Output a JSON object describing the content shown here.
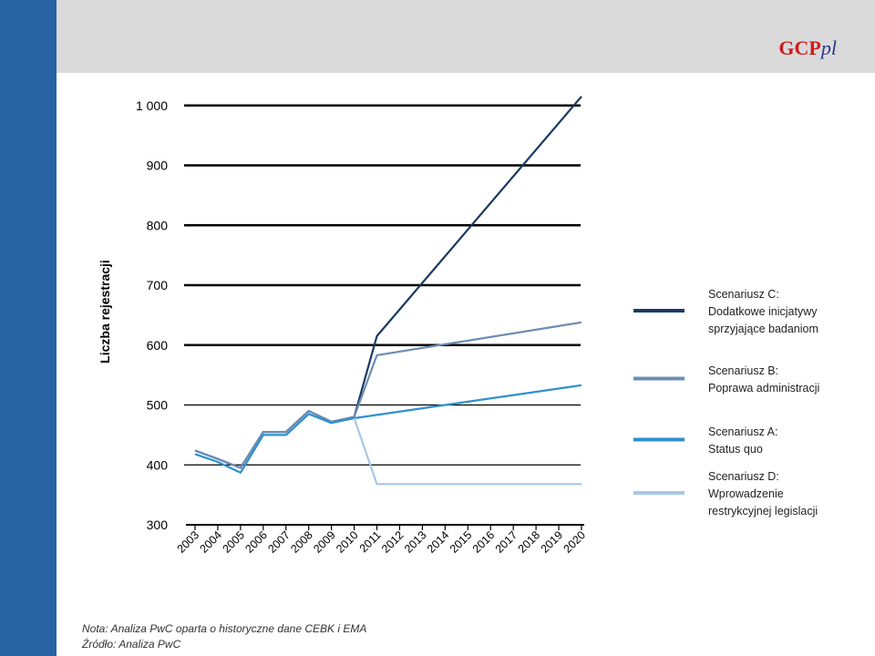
{
  "logo": {
    "bold": "GCP",
    "italic": "pl"
  },
  "chart_data": {
    "type": "line",
    "ylabel": "Liczba rejestracji",
    "xlabel": "",
    "ylim": [
      300,
      1000
    ],
    "yticks": [
      {
        "v": 300,
        "label": "300"
      },
      {
        "v": 400,
        "label": "400"
      },
      {
        "v": 500,
        "label": "500"
      },
      {
        "v": 600,
        "label": "600"
      },
      {
        "v": 700,
        "label": "700"
      },
      {
        "v": 800,
        "label": "800"
      },
      {
        "v": 900,
        "label": "900"
      },
      {
        "v": 1000,
        "label": "1 000"
      }
    ],
    "categories": [
      "2003",
      "2004",
      "2005",
      "2006",
      "2007",
      "2008",
      "2009",
      "2010",
      "2011",
      "2012",
      "2013",
      "2014",
      "2015",
      "2016",
      "2017",
      "2018",
      "2019",
      "2020"
    ],
    "legend_position": "right",
    "series": [
      {
        "name_lines": [
          "Scenariusz C:",
          "Dodatkowe inicjatywy",
          "sprzyjające badaniom"
        ],
        "color": "#1b3a63",
        "points": [
          [
            0,
            424
          ],
          [
            1,
            410
          ],
          [
            2,
            395
          ],
          [
            3,
            455
          ],
          [
            4,
            455
          ],
          [
            5,
            490
          ],
          [
            6,
            472
          ],
          [
            7,
            480
          ],
          [
            8,
            615
          ],
          [
            17,
            1015
          ]
        ]
      },
      {
        "name_lines": [
          "Scenariusz B:",
          "Poprawa administracji"
        ],
        "color": "#6b8db3",
        "points": [
          [
            0,
            424
          ],
          [
            1,
            410
          ],
          [
            2,
            395
          ],
          [
            3,
            455
          ],
          [
            4,
            455
          ],
          [
            5,
            490
          ],
          [
            6,
            472
          ],
          [
            7,
            480
          ],
          [
            8,
            583
          ],
          [
            17,
            638
          ]
        ]
      },
      {
        "name_lines": [
          "Scenariusz A:",
          "Status quo"
        ],
        "color": "#2e90d1",
        "points": [
          [
            0,
            418
          ],
          [
            1,
            405
          ],
          [
            2,
            387
          ],
          [
            3,
            450
          ],
          [
            4,
            450
          ],
          [
            5,
            485
          ],
          [
            6,
            470
          ],
          [
            7,
            478
          ],
          [
            17,
            533
          ]
        ]
      },
      {
        "name_lines": [
          "Scenariusz D:",
          "Wprowadzenie",
          "restrykcyjnej legislacji"
        ],
        "color": "#a6c8e6",
        "points": [
          [
            7,
            478
          ],
          [
            8,
            368
          ],
          [
            17,
            368
          ]
        ]
      }
    ]
  },
  "notes": {
    "nota": "Nota: Analiza PwC oparta o historyczne dane CEBK i EMA",
    "source": "Źródło: Analiza PwC"
  }
}
